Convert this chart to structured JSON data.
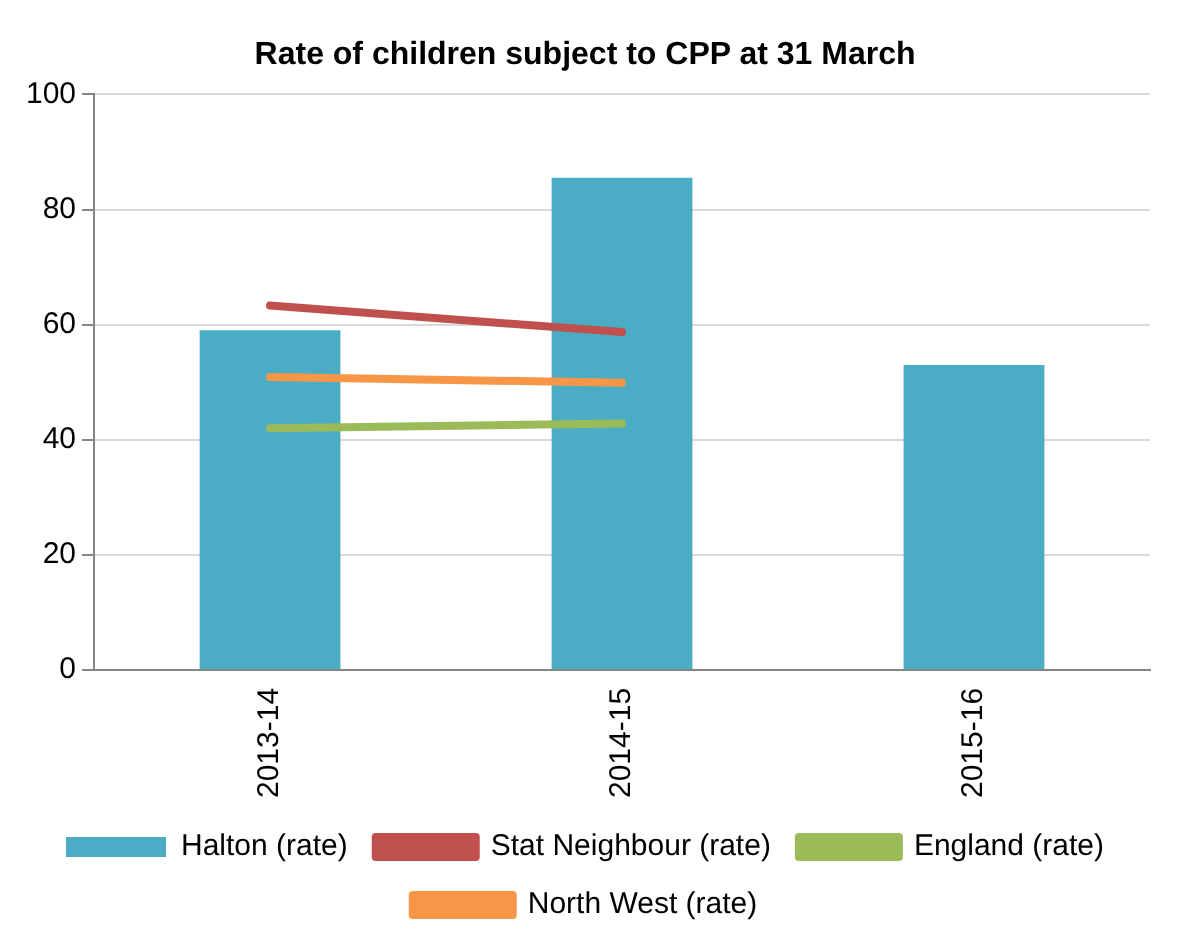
{
  "chart_data": {
    "type": "bar",
    "title": "Rate of children subject to CPP at 31 March",
    "categories": [
      "2013-14",
      "2014-15",
      "2015-16"
    ],
    "series": [
      {
        "name": "Halton (rate)",
        "color": "#4bacc6",
        "values": [
          59,
          85.5,
          53
        ]
      },
      {
        "name": "Stat Neighbour (rate)",
        "type": "line",
        "color": "#c0504d",
        "values": [
          63.3,
          58.7,
          null
        ]
      },
      {
        "name": "England (rate)",
        "type": "line",
        "color": "#9bbb59",
        "values": [
          42,
          42.8,
          null
        ]
      },
      {
        "name": "North West (rate)",
        "type": "line",
        "color": "#f79646",
        "values": [
          50.9,
          49.9,
          null
        ]
      }
    ],
    "ylim": [
      0,
      100
    ],
    "yticks": [
      0,
      20,
      40,
      60,
      80,
      100
    ],
    "grid": "y",
    "legend": "bottom",
    "marker": "none"
  }
}
